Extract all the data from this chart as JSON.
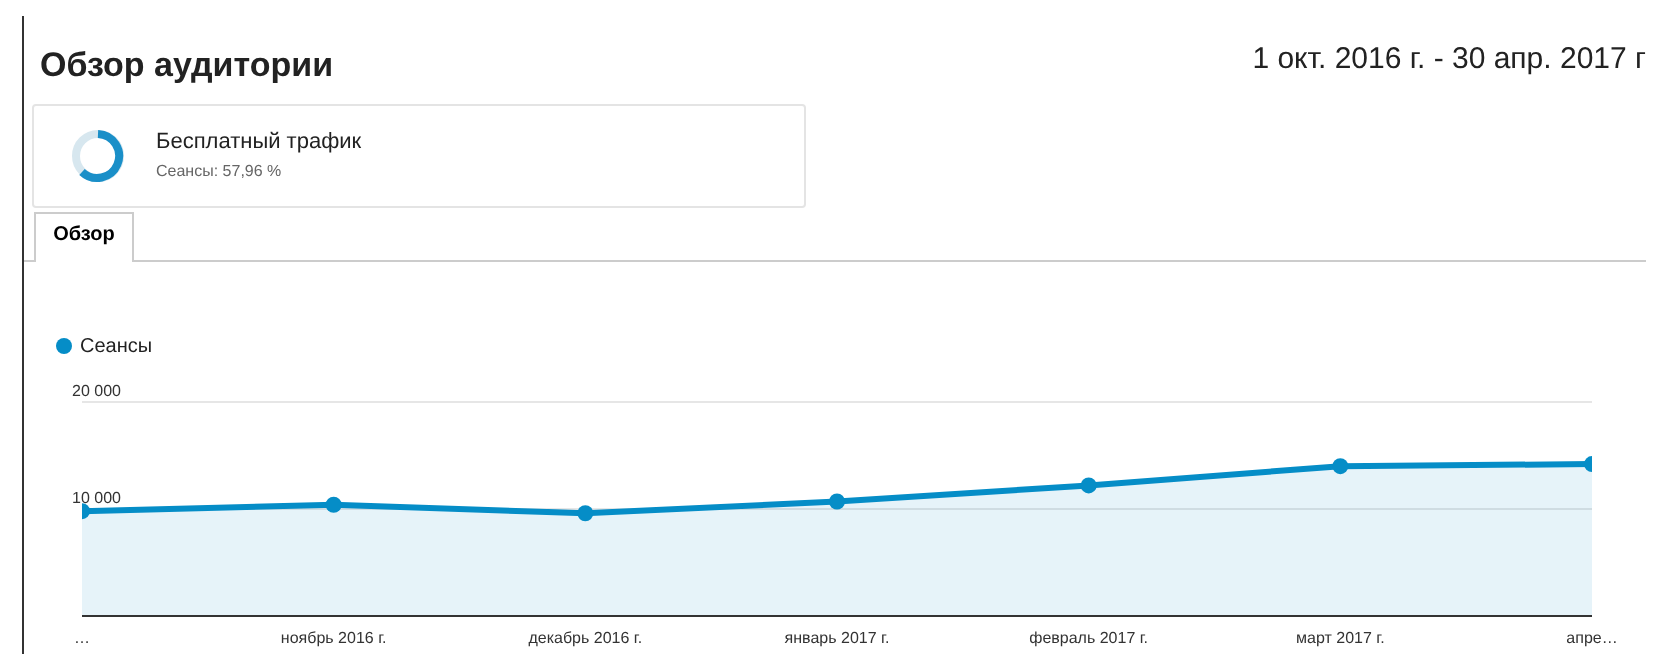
{
  "chart_data": {
    "type": "area",
    "title": "Обзор аудитории",
    "subtitle": "1 окт. 2016 г. - 30 апр. 2017 г",
    "annotations": [
      "Бесплатный трафик",
      "Сеансы: 57,96 %",
      "Обзор"
    ],
    "categories": [
      "…",
      "ноябрь 2016 г.",
      "декабрь 2016 г.",
      "январь 2017 г.",
      "февраль 2017 г.",
      "март 2017 г.",
      "апре…"
    ],
    "series": [
      {
        "name": "Сеансы",
        "color": "#058dc7",
        "values": [
          9800,
          10400,
          9600,
          10700,
          12200,
          14000,
          14200
        ]
      }
    ],
    "ylim": [
      0,
      20000
    ],
    "yticks": [
      {
        "value": 10000,
        "label": "10 000"
      },
      {
        "value": 20000,
        "label": "20 000"
      }
    ],
    "grid": "y",
    "legend": "top left",
    "marker": "circle"
  }
}
